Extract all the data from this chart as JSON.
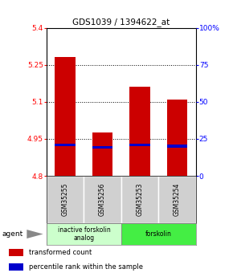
{
  "title": "GDS1039 / 1394622_at",
  "samples": [
    "GSM35255",
    "GSM35256",
    "GSM35253",
    "GSM35254"
  ],
  "bar_tops": [
    5.28,
    4.975,
    5.16,
    5.11
  ],
  "bar_bottom": 4.8,
  "blue_marker_values": [
    4.925,
    4.915,
    4.925,
    4.92
  ],
  "ylim": [
    4.8,
    5.4
  ],
  "yticks_left": [
    4.8,
    4.95,
    5.1,
    5.25,
    5.4
  ],
  "yticks_right": [
    0,
    25,
    50,
    75,
    100
  ],
  "bar_color": "#cc0000",
  "blue_color": "#0000cc",
  "bar_width": 0.55,
  "groups": [
    {
      "label": "inactive forskolin\nanalog",
      "samples": [
        0,
        1
      ],
      "color": "#ccffcc"
    },
    {
      "label": "forskolin",
      "samples": [
        2,
        3
      ],
      "color": "#44ee44"
    }
  ],
  "agent_label": "agent",
  "legend_items": [
    {
      "color": "#cc0000",
      "label": "transformed count"
    },
    {
      "color": "#0000cc",
      "label": "percentile rank within the sample"
    }
  ]
}
